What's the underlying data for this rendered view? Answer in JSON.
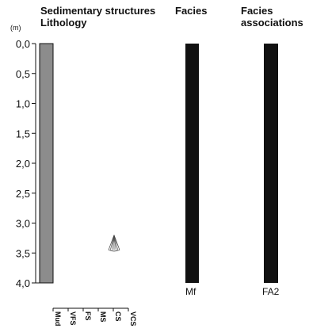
{
  "headers": {
    "structures_line1": "Sedimentary structures",
    "structures_line2": "Lithology",
    "facies": "Facies",
    "associations_line1": "Facies",
    "associations_line2": "associations"
  },
  "depth_axis": {
    "unit_label": "(m)",
    "min": 0.0,
    "max": 4.0,
    "ticks": [
      "0,0",
      "0,5",
      "1,0",
      "1,5",
      "2,0",
      "2,5",
      "3,0",
      "3,5",
      "4,0"
    ]
  },
  "grain_size_axis": {
    "labels": [
      "Mud",
      "VFS",
      "FS",
      "MS",
      "CS",
      "VCS"
    ]
  },
  "lithology": {
    "top": 0.0,
    "base": 4.0,
    "grain_size": "Mud",
    "color": "#8c8c8c"
  },
  "structures": [
    {
      "type": "fan-shaped symbol",
      "icon": "fan-structure-icon",
      "depth_top": 3.2,
      "depth_base": 3.45,
      "grain_position": "CS"
    }
  ],
  "facies": {
    "code": "Mf",
    "top": 0.0,
    "base": 4.0,
    "color": "#111111"
  },
  "facies_association": {
    "code": "FA2",
    "top": 0.0,
    "base": 4.0,
    "color": "#111111"
  }
}
